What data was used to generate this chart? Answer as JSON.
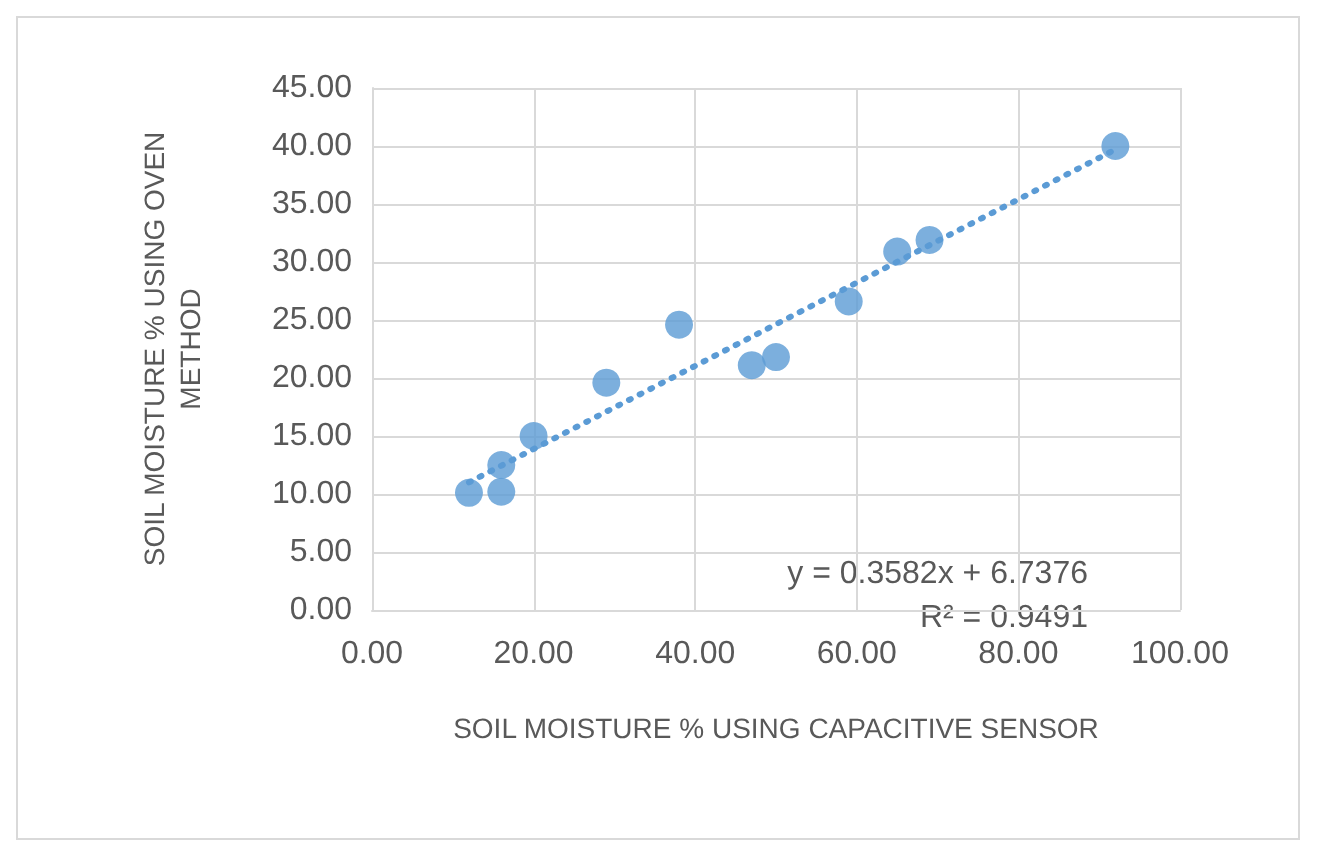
{
  "chart_data": {
    "type": "scatter",
    "xlabel": "SOIL MOISTURE % USING CAPACITIVE SENSOR",
    "ylabel": "SOIL MOISTURE % USING OVEN METHOD",
    "series": [
      {
        "color": "#5b9bd5",
        "x": [
          12,
          16,
          16,
          20,
          29,
          38,
          47,
          50,
          59,
          65,
          69,
          92
        ],
        "values": [
          10.1,
          10.2,
          12.5,
          15,
          19.6,
          24.6,
          21.1,
          21.8,
          26.6,
          30.9,
          31.9,
          40
        ]
      },
      {
        "type": "line",
        "line_style": "dotted",
        "marker": "none",
        "color": "#5b9bd5",
        "x": [
          12,
          92
        ],
        "values": [
          11.0,
          39.7
        ]
      }
    ],
    "marker": "circle",
    "grid": true,
    "xlim": [
      0,
      100
    ],
    "xticks": [
      {
        "value": 0,
        "label": "0.00"
      },
      {
        "value": 20,
        "label": "20.00"
      },
      {
        "value": 40,
        "label": "40.00"
      },
      {
        "value": 60,
        "label": "60.00"
      },
      {
        "value": 80,
        "label": "80.00"
      },
      {
        "value": 100,
        "label": "100.00"
      }
    ],
    "ylim": [
      0,
      45
    ],
    "yticks": [
      {
        "value": 0,
        "label": "0.00"
      },
      {
        "value": 5,
        "label": "5.00"
      },
      {
        "value": 10,
        "label": "10.00"
      },
      {
        "value": 15,
        "label": "15.00"
      },
      {
        "value": 20,
        "label": "20.00"
      },
      {
        "value": 25,
        "label": "25.00"
      },
      {
        "value": 30,
        "label": "30.00"
      },
      {
        "value": 35,
        "label": "35.00"
      },
      {
        "value": 40,
        "label": "40.00"
      },
      {
        "value": 45,
        "label": "45.00"
      }
    ],
    "annotations": [
      "y = 0.3582x + 6.7376",
      "R² = 0.9491"
    ]
  }
}
